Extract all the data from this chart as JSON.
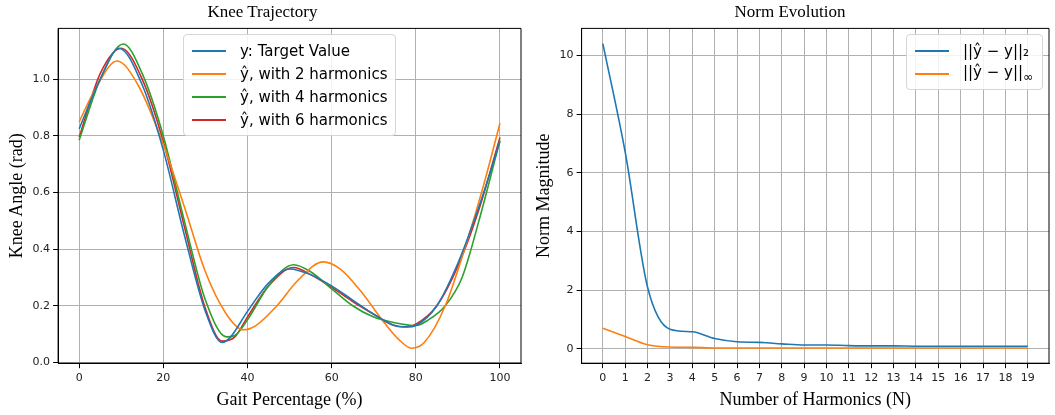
{
  "chart_data": [
    {
      "type": "line",
      "title": "Knee Trajectory",
      "xlabel": "Gait Percentage (%)",
      "ylabel": "Knee Angle (rad)",
      "xlim": [
        -5,
        105
      ],
      "ylim": [
        -0.003,
        1.18
      ],
      "xticks": [
        0,
        20,
        40,
        60,
        80,
        100
      ],
      "yticks": [
        {
          "value": 0,
          "label": "0.0"
        },
        0.2,
        0.4,
        0.6,
        0.8,
        {
          "value": 1,
          "label": "1.0"
        }
      ],
      "grid": true,
      "legend": "top",
      "marker": "none",
      "series": [
        {
          "name": "y: Target Value",
          "color": "#1f77b4",
          "x": [
            0,
            5,
            9.5,
            15,
            20,
            25,
            30,
            34,
            36,
            40,
            45,
            50,
            55,
            60,
            65,
            70,
            75,
            78,
            80,
            85,
            90,
            95,
            100
          ],
          "values": [
            0.825,
            1.0,
            1.11,
            0.98,
            0.75,
            0.45,
            0.18,
            0.07,
            0.09,
            0.18,
            0.28,
            0.33,
            0.31,
            0.27,
            0.22,
            0.17,
            0.13,
            0.125,
            0.13,
            0.2,
            0.35,
            0.55,
            0.78
          ]
        },
        {
          "name": "ŷ, with 2 harmonics",
          "color": "#ff7f0e",
          "x": [
            0,
            4,
            9,
            14,
            20,
            25,
            30,
            35,
            39,
            42,
            47,
            52,
            58,
            62,
            67,
            72,
            76,
            79,
            82,
            87,
            92,
            96,
            100
          ],
          "values": [
            0.85,
            0.97,
            1.065,
            0.98,
            0.77,
            0.55,
            0.32,
            0.17,
            0.115,
            0.13,
            0.2,
            0.29,
            0.355,
            0.33,
            0.25,
            0.15,
            0.08,
            0.05,
            0.07,
            0.2,
            0.42,
            0.62,
            0.845
          ]
        },
        {
          "name": "ŷ, with 4 harmonics",
          "color": "#2ca02c",
          "x": [
            0,
            5,
            10.5,
            15,
            20,
            25,
            30,
            35,
            37,
            40,
            45,
            51,
            55,
            60,
            65,
            70,
            75,
            80,
            83,
            87,
            91,
            95,
            100
          ],
          "values": [
            0.785,
            1.0,
            1.125,
            1.02,
            0.8,
            0.5,
            0.22,
            0.09,
            0.095,
            0.15,
            0.27,
            0.345,
            0.32,
            0.26,
            0.2,
            0.16,
            0.14,
            0.13,
            0.15,
            0.2,
            0.3,
            0.5,
            0.785
          ]
        },
        {
          "name": "ŷ, with 6 harmonics",
          "color": "#d62728",
          "x": [
            0,
            5,
            10,
            15,
            20,
            25,
            30,
            34,
            37,
            40,
            45,
            51,
            55,
            60,
            65,
            70,
            74,
            77,
            80,
            85,
            90,
            95,
            100
          ],
          "values": [
            0.795,
            1.02,
            1.11,
            1.0,
            0.78,
            0.48,
            0.19,
            0.075,
            0.09,
            0.16,
            0.27,
            0.335,
            0.31,
            0.265,
            0.215,
            0.17,
            0.135,
            0.125,
            0.135,
            0.2,
            0.34,
            0.54,
            0.795
          ]
        }
      ]
    },
    {
      "type": "line",
      "title": "Norm Evolution",
      "xlabel": "Number of Harmonics (N)",
      "ylabel": "Norm Magnitude",
      "xlim": [
        -0.95,
        19.95
      ],
      "ylim": [
        -0.49,
        10.92
      ],
      "xticks": [
        0,
        1,
        2,
        3,
        4,
        5,
        6,
        7,
        8,
        9,
        10,
        11,
        12,
        13,
        14,
        15,
        16,
        17,
        18,
        19
      ],
      "yticks": [
        0,
        2,
        4,
        6,
        8,
        10
      ],
      "grid": true,
      "legend": "top right",
      "marker": "none",
      "series": [
        {
          "name": "||ŷ − y||₂",
          "color": "#1f77b4",
          "x": [
            0,
            1,
            2,
            3,
            4,
            5,
            6,
            7,
            8,
            9,
            10,
            11,
            12,
            13,
            14,
            15,
            16,
            17,
            18,
            19
          ],
          "values": [
            10.4,
            6.7,
            2.1,
            0.67,
            0.58,
            0.35,
            0.24,
            0.22,
            0.17,
            0.13,
            0.13,
            0.11,
            0.1,
            0.1,
            0.09,
            0.09,
            0.09,
            0.09,
            0.09,
            0.09
          ]
        },
        {
          "name": "||ŷ − y||$_{∞}$",
          "color": "#ff7f0e",
          "x": [
            0,
            1,
            2,
            3,
            4,
            5,
            6,
            7,
            8,
            9,
            10,
            11,
            12,
            13,
            14,
            15,
            16,
            17,
            18,
            19
          ],
          "values": [
            0.7,
            0.42,
            0.14,
            0.06,
            0.05,
            0.03,
            0.03,
            0.03,
            0.03,
            0.03,
            0.03,
            0.03,
            0.03,
            0.03,
            0.03,
            0.03,
            0.03,
            0.03,
            0.03,
            0.03
          ]
        }
      ]
    }
  ]
}
